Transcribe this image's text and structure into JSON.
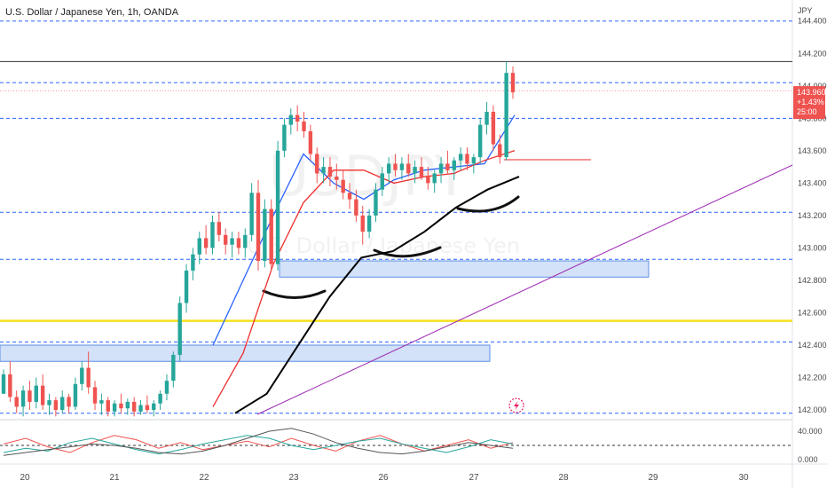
{
  "header": {
    "title": "U.S. Dollar / Japanese Yen, 1h, OANDA"
  },
  "watermark": {
    "symbol": "USDJPY",
    "name": "U.S. Dollar / Japanese Yen"
  },
  "price_axis": {
    "currency": "JPY",
    "ticks": [
      "144.400",
      "144.200",
      "144.000",
      "143.800",
      "143.600",
      "143.400",
      "143.200",
      "143.000",
      "142.800",
      "142.600",
      "142.400",
      "142.200",
      "142.000"
    ]
  },
  "price_badge": {
    "price": "143.960",
    "change": "+1.43%",
    "countdown": "25:00",
    "color": "#ef5350"
  },
  "time_axis": {
    "labels": [
      "20",
      "21",
      "22",
      "23",
      "26",
      "27",
      "28",
      "29",
      "30"
    ]
  },
  "oscillator_axis": {
    "ticks": [
      "40.000",
      "0.000"
    ]
  },
  "colors": {
    "up": "#26a69a",
    "down": "#ef5350",
    "ma_fast": "#2962ff",
    "ma_slow": "#ef2e2e",
    "ma_long": "#000000",
    "level_dashed": "#2962ff",
    "yellow_level": "#f7e11e",
    "trendline": "#9c27b0",
    "zone_fill": "#90b4f0"
  },
  "chart_data": {
    "type": "candlestick",
    "symbol": "USDJPY",
    "title": "U.S. Dollar / Japanese Yen, 1h, OANDA",
    "ylabel": "JPY",
    "ylim": [
      141.94,
      144.53
    ],
    "last_price": 143.96,
    "change_pct": "+1.43%",
    "grid": false,
    "candles": [
      [
        142.1,
        142.25,
        142.1,
        142.22
      ],
      [
        142.22,
        142.3,
        142.05,
        142.08
      ],
      [
        142.08,
        142.12,
        141.98,
        142.02
      ],
      [
        142.02,
        142.15,
        141.96,
        142.12
      ],
      [
        142.12,
        142.18,
        142.0,
        142.05
      ],
      [
        142.05,
        142.2,
        142.01,
        142.15
      ],
      [
        142.15,
        142.22,
        142.0,
        142.03
      ],
      [
        142.03,
        142.1,
        141.97,
        142.06
      ],
      [
        142.06,
        142.08,
        141.96,
        142.0
      ],
      [
        142.0,
        142.12,
        141.98,
        142.08
      ],
      [
        142.08,
        142.1,
        141.98,
        142.02
      ],
      [
        142.02,
        142.2,
        142.0,
        142.16
      ],
      [
        142.16,
        142.3,
        142.12,
        142.26
      ],
      [
        142.26,
        142.36,
        142.1,
        142.14
      ],
      [
        142.14,
        142.18,
        142.0,
        142.04
      ],
      [
        142.04,
        142.1,
        141.97,
        142.06
      ],
      [
        142.06,
        142.08,
        141.96,
        141.99
      ],
      [
        141.99,
        142.06,
        141.96,
        142.04
      ],
      [
        142.04,
        142.1,
        141.98,
        142.01
      ],
      [
        142.01,
        142.07,
        141.97,
        142.05
      ],
      [
        142.05,
        142.08,
        141.96,
        141.99
      ],
      [
        141.99,
        142.06,
        141.97,
        142.03
      ],
      [
        142.03,
        142.09,
        141.98,
        142.0
      ],
      [
        142.0,
        142.06,
        141.96,
        142.04
      ],
      [
        142.04,
        142.12,
        142.0,
        142.1
      ],
      [
        142.1,
        142.22,
        142.06,
        142.18
      ],
      [
        142.18,
        142.36,
        142.14,
        142.34
      ],
      [
        142.34,
        142.7,
        142.3,
        142.66
      ],
      [
        142.66,
        142.9,
        142.6,
        142.86
      ],
      [
        142.86,
        143.0,
        142.8,
        142.96
      ],
      [
        142.96,
        143.1,
        142.9,
        143.06
      ],
      [
        143.06,
        143.14,
        142.96,
        143.0
      ],
      [
        143.0,
        143.2,
        142.96,
        143.16
      ],
      [
        143.16,
        143.22,
        143.04,
        143.08
      ],
      [
        143.08,
        143.12,
        142.96,
        143.02
      ],
      [
        143.02,
        143.1,
        142.94,
        143.06
      ],
      [
        143.06,
        143.1,
        142.96,
        143.0
      ],
      [
        143.0,
        143.12,
        142.94,
        143.08
      ],
      [
        143.08,
        143.4,
        143.04,
        143.34
      ],
      [
        143.34,
        143.42,
        142.86,
        142.92
      ],
      [
        142.92,
        143.3,
        142.88,
        143.24
      ],
      [
        143.24,
        143.3,
        142.86,
        142.9
      ],
      [
        142.9,
        143.66,
        142.86,
        143.6
      ],
      [
        143.6,
        143.8,
        143.56,
        143.76
      ],
      [
        143.76,
        143.86,
        143.7,
        143.82
      ],
      [
        143.82,
        143.88,
        143.72,
        143.78
      ],
      [
        143.78,
        143.84,
        143.68,
        143.72
      ],
      [
        143.72,
        143.76,
        143.54,
        143.58
      ],
      [
        143.58,
        143.62,
        143.4,
        143.46
      ],
      [
        143.46,
        143.56,
        143.4,
        143.5
      ],
      [
        143.5,
        143.56,
        143.38,
        143.44
      ],
      [
        143.44,
        143.52,
        143.36,
        143.42
      ],
      [
        143.42,
        143.48,
        143.3,
        143.34
      ],
      [
        143.34,
        143.4,
        143.24,
        143.3
      ],
      [
        143.3,
        143.36,
        143.16,
        143.2
      ],
      [
        143.2,
        143.26,
        143.02,
        143.1
      ],
      [
        143.1,
        143.24,
        143.06,
        143.2
      ],
      [
        143.2,
        143.4,
        143.16,
        143.36
      ],
      [
        143.36,
        143.5,
        143.32,
        143.46
      ],
      [
        143.46,
        143.56,
        143.4,
        143.52
      ],
      [
        143.52,
        143.58,
        143.44,
        143.48
      ],
      [
        143.48,
        143.56,
        143.42,
        143.52
      ],
      [
        143.52,
        143.58,
        143.44,
        143.46
      ],
      [
        143.46,
        143.54,
        143.4,
        143.5
      ],
      [
        143.5,
        143.56,
        143.42,
        143.44
      ],
      [
        143.44,
        143.5,
        143.36,
        143.4
      ],
      [
        143.4,
        143.48,
        143.34,
        143.46
      ],
      [
        143.46,
        143.56,
        143.4,
        143.52
      ],
      [
        143.52,
        143.6,
        143.46,
        143.48
      ],
      [
        143.48,
        143.56,
        143.42,
        143.54
      ],
      [
        143.54,
        143.62,
        143.48,
        143.58
      ],
      [
        143.58,
        143.62,
        143.48,
        143.52
      ],
      [
        143.52,
        143.58,
        143.46,
        143.56
      ],
      [
        143.56,
        143.8,
        143.52,
        143.76
      ],
      [
        143.76,
        143.9,
        143.7,
        143.84
      ],
      [
        143.84,
        143.88,
        143.6,
        143.64
      ],
      [
        143.64,
        143.7,
        143.52,
        143.56
      ],
      [
        143.56,
        144.15,
        143.54,
        144.08
      ],
      [
        144.08,
        144.12,
        143.92,
        143.96
      ]
    ],
    "moving_averages": [
      {
        "color": "#2962ff",
        "values": [
          142.4,
          142.8,
          143.2,
          143.58,
          143.4,
          143.3,
          143.42,
          143.48,
          143.5,
          143.52,
          143.82
        ]
      },
      {
        "color": "#ef2e2e",
        "values": [
          142.02,
          142.35,
          142.9,
          143.28,
          143.48,
          143.48,
          143.4,
          143.44,
          143.46,
          143.54,
          143.6
        ]
      },
      {
        "color": "#000000",
        "values": [
          141.98,
          142.1,
          142.4,
          142.7,
          142.94,
          142.98,
          143.1,
          143.25,
          143.36,
          143.44
        ]
      }
    ],
    "levels": [
      144.4,
      144.15,
      144.02,
      143.97,
      143.8,
      143.22,
      142.93,
      142.42,
      141.98
    ],
    "levels_solid": [
      144.15,
      142.25
    ],
    "yellow_level": 142.55,
    "zones": [
      {
        "low": 142.82,
        "high": 142.92
      },
      {
        "low": 142.3,
        "high": 142.4
      }
    ],
    "oscillator": {
      "ticks": [
        40,
        0
      ],
      "ylim": [
        -5,
        55
      ],
      "series": [
        {
          "color": "#ef5350",
          "values": [
            22,
            30,
            18,
            10,
            24,
            34,
            28,
            16,
            24,
            14,
            20,
            26,
            18,
            30,
            20,
            12,
            26,
            34,
            22,
            12,
            20,
            28,
            16,
            24
          ]
        },
        {
          "color": "#26a69a",
          "values": [
            10,
            16,
            12,
            24,
            30,
            22,
            14,
            8,
            14,
            22,
            28,
            34,
            30,
            20,
            14,
            20,
            26,
            30,
            22,
            16,
            10,
            18,
            28,
            22
          ]
        },
        {
          "color": "#555555",
          "values": [
            6,
            10,
            14,
            18,
            22,
            20,
            16,
            10,
            8,
            12,
            20,
            30,
            40,
            44,
            36,
            24,
            16,
            10,
            8,
            12,
            18,
            24,
            20,
            16
          ]
        }
      ]
    }
  }
}
